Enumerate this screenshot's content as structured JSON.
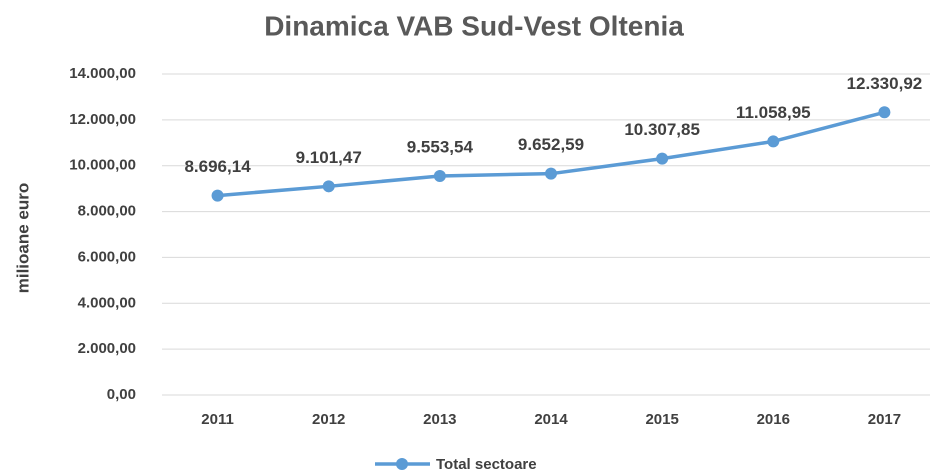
{
  "chart_data": {
    "type": "line",
    "title": "Dinamica VAB Sud-Vest Oltenia",
    "y_label": "milioane euro",
    "categories": [
      "2011",
      "2012",
      "2013",
      "2014",
      "2015",
      "2016",
      "2017"
    ],
    "series": [
      {
        "name": "Total sectoare",
        "color": "#5b9bd5",
        "values": [
          8696.14,
          9101.47,
          9553.54,
          9652.59,
          10307.85,
          11058.95,
          12330.92
        ],
        "value_labels": [
          "8.696,14",
          "9.101,47",
          "9.553,54",
          "9.652,59",
          "10.307,85",
          "11.058,95",
          "12.330,92"
        ]
      }
    ],
    "ylim": [
      0,
      14000
    ],
    "yticks": [
      {
        "value": 0,
        "label": "0,00"
      },
      {
        "value": 2000,
        "label": "2.000,00"
      },
      {
        "value": 4000,
        "label": "4.000,00"
      },
      {
        "value": 6000,
        "label": "6.000,00"
      },
      {
        "value": 8000,
        "label": "8.000,00"
      },
      {
        "value": 10000,
        "label": "10.000,00"
      },
      {
        "value": 12000,
        "label": "12.000,00"
      },
      {
        "value": 14000,
        "label": "14.000,00"
      }
    ],
    "grid": true,
    "legend": "bottom"
  }
}
